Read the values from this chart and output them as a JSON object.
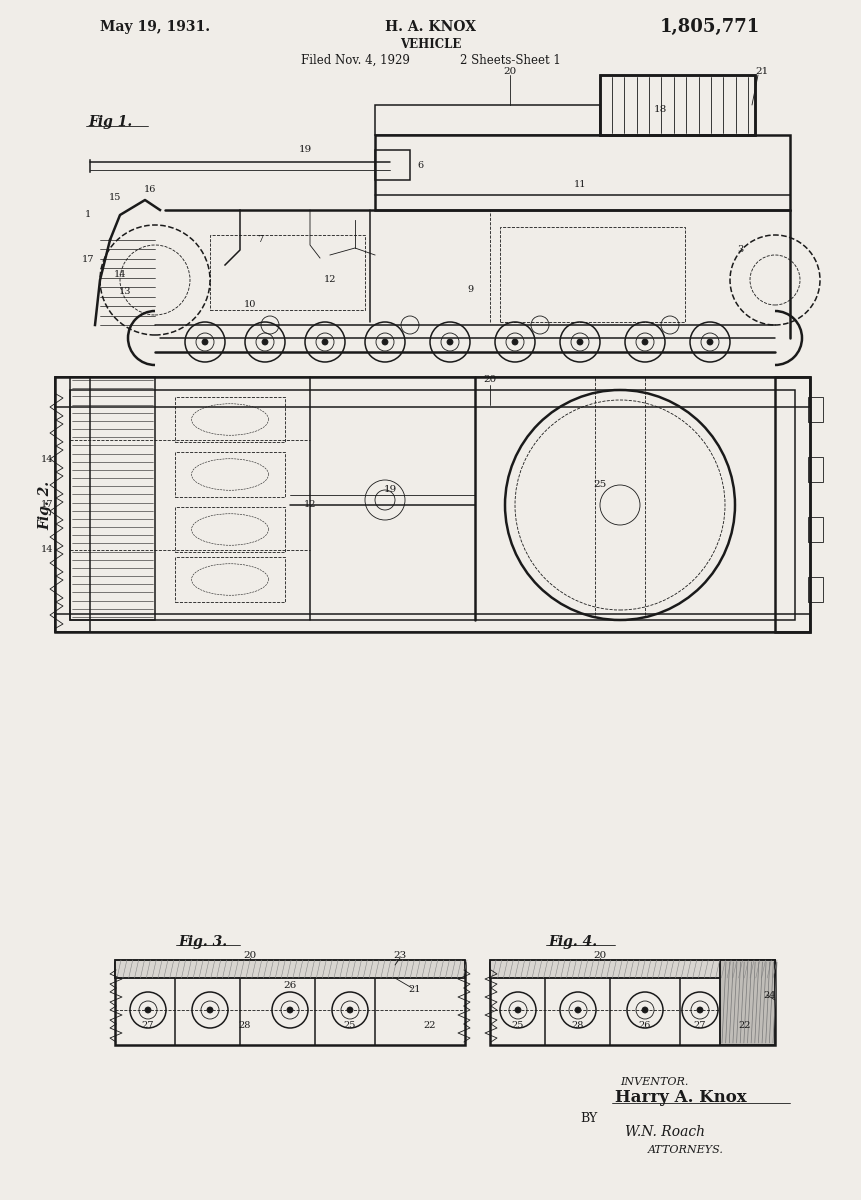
{
  "background_color": "#f5f2ed",
  "paper_color": "#f0ede8",
  "line_color": "#1a1a1a",
  "header": {
    "date": "May 19, 1931.",
    "inventor": "H. A. KNOX",
    "title": "VEHICLE",
    "filed": "Filed Nov. 4, 1929",
    "sheets": "2 Sheets-Sheet 1",
    "patent_num": "1,805,771"
  },
  "footer": {
    "inventor_label": "INVENTOR.",
    "inventor_name": "Harry A. Knox",
    "by_label": "BY",
    "attorney_sig": "W.N. Roach",
    "attorneys": "ATTORNEYS."
  },
  "fig_labels": [
    "Fig. 1.",
    "Fig. 2.",
    "Fig. 3.",
    "Fig. 4."
  ]
}
